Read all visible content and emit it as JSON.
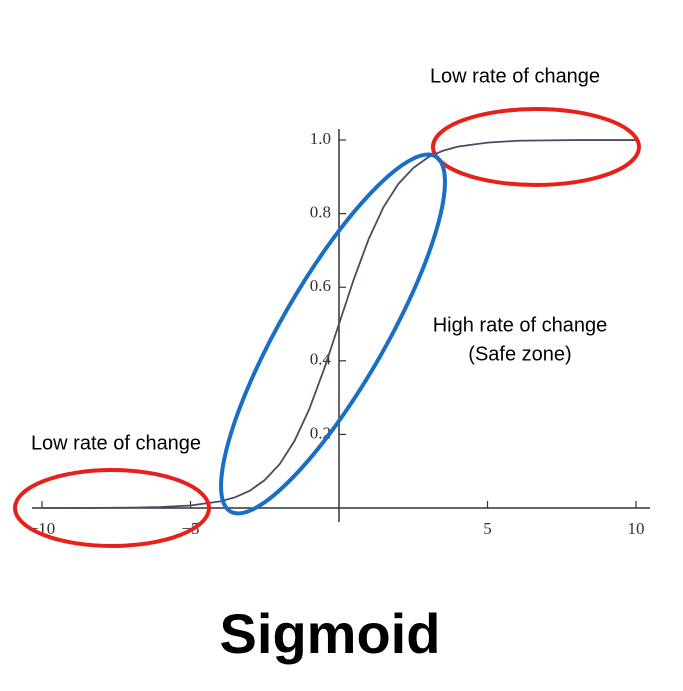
{
  "chart_data": {
    "type": "line",
    "title": "Sigmoid",
    "annotations": [
      "Low rate of change",
      "Low rate of change",
      "High rate of change",
      "(Safe zone)"
    ],
    "x": [
      -10,
      -9,
      -8,
      -7,
      -6,
      -5,
      -4,
      -3.5,
      -3,
      -2.5,
      -2,
      -1.5,
      -1,
      -0.5,
      0,
      0.5,
      1,
      1.5,
      2,
      2.5,
      3,
      3.5,
      4,
      5,
      6,
      7,
      8,
      9,
      10
    ],
    "series": [
      {
        "color": "#4b4a66",
        "values": [
          0,
          0.0001,
          0.0003,
          0.0009,
          0.0025,
          0.0067,
          0.018,
          0.029,
          0.047,
          0.076,
          0.119,
          0.182,
          0.269,
          0.378,
          0.5,
          0.622,
          0.731,
          0.818,
          0.881,
          0.924,
          0.953,
          0.971,
          0.982,
          0.993,
          0.998,
          0.999,
          1,
          1,
          1
        ]
      }
    ],
    "xlim": [
      -10,
      10
    ],
    "ylim": [
      0,
      1.03
    ],
    "xticks": [
      {
        "value": -10,
        "label": "−10"
      },
      {
        "value": -5,
        "label": "−5"
      },
      5,
      10
    ],
    "yticks": [
      0.2,
      0.4,
      0.6,
      0.8,
      {
        "value": 1,
        "label": "1.0"
      }
    ]
  }
}
